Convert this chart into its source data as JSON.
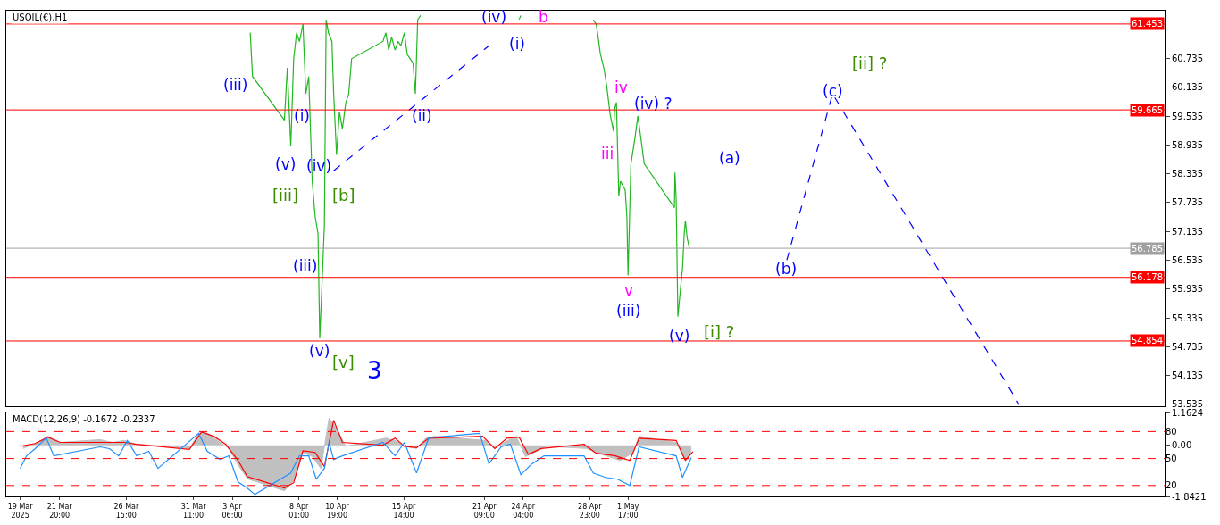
{
  "chart_data": [
    {
      "type": "line",
      "title": "USOIL(€),H1",
      "tick_labels": "y",
      "xlim": [
        "2025-03-18T00:00",
        "2025-06-09T07:00"
      ],
      "ylim": [
        53.49,
        61.73
      ],
      "yticks": [
        {
          "value": 53.535,
          "label": "53.535"
        },
        {
          "value": 54.135,
          "label": "54.135"
        },
        {
          "value": 54.735,
          "label": "54.735"
        },
        {
          "value": 55.335,
          "label": "55.335"
        },
        {
          "value": 55.935,
          "label": "55.935"
        },
        {
          "value": 56.535,
          "label": "56.535"
        },
        {
          "value": 57.135,
          "label": "57.135"
        },
        {
          "value": 57.735,
          "label": "57.735"
        },
        {
          "value": 58.335,
          "label": "58.335"
        },
        {
          "value": 58.935,
          "label": "58.935"
        },
        {
          "value": 59.535,
          "label": "59.535"
        },
        {
          "value": 60.135,
          "label": "60.135"
        },
        {
          "value": 60.735,
          "label": "60.735"
        }
      ],
      "series": [
        {
          "color": "#22b822",
          "line_style": "solid",
          "x": [
            "2025-04-04T13:00",
            "2025-04-04T17:00",
            "2025-04-07T00:00",
            "2025-04-07T05:00",
            "2025-04-07T11:00",
            "2025-04-07T16:00",
            "2025-04-07T21:00",
            "2025-04-08T02:00",
            "2025-04-08T08:00",
            "2025-04-08T13:00",
            "2025-04-08T18:00",
            "2025-04-09T00:00",
            "2025-04-09T05:00",
            "2025-04-09T10:00",
            "2025-04-09T13:00",
            "2025-04-09T18:00",
            "2025-04-09T21:00",
            "2025-04-10T00:00",
            "2025-04-10T04:00",
            "2025-04-10T10:00",
            "2025-04-10T13:00",
            "2025-04-10T18:00",
            "2025-04-10T23:00",
            "2025-04-11T04:00",
            "2025-04-11T10:00",
            "2025-04-11T15:00",
            "2025-04-11T20:00",
            "2025-04-14T02:00",
            "2025-04-14T07:00",
            "2025-04-14T12:00",
            "2025-04-14T17:00",
            "2025-04-14T23:00",
            "2025-04-15T04:00",
            "2025-04-15T09:00",
            "2025-04-15T15:00",
            "2025-04-15T20:00",
            "2025-04-16T01:00",
            "2025-04-16T06:00",
            "2025-04-16T10:00",
            "2025-04-16T14:00",
            "2025-04-16T19:00",
            "2025-04-17T19:00",
            "2025-04-23T21:00",
            "2025-04-24T00:00",
            "2025-04-25T16:00",
            "2025-04-29T05:00",
            "2025-04-29T10:00",
            "2025-04-29T13:00",
            "2025-04-29T17:00",
            "2025-04-30T00:00",
            "2025-04-30T04:00",
            "2025-04-30T10:00",
            "2025-04-30T16:00",
            "2025-04-30T18:00",
            "2025-04-30T21:00",
            "2025-05-01T01:00",
            "2025-05-01T04:00",
            "2025-05-01T12:00",
            "2025-05-01T15:00",
            "2025-05-01T17:00",
            "2025-05-01T22:00",
            "2025-05-02T05:00",
            "2025-05-02T10:00",
            "2025-05-02T15:00",
            "2025-05-02T21:00",
            "2025-05-05T01:00",
            "2025-05-05T02:00",
            "2025-05-05T04:00",
            "2025-05-05T07:00",
            "2025-05-05T12:00",
            "2025-05-05T15:00",
            "2025-05-05T18:00",
            "2025-05-05T20:00",
            "2025-05-05T23:00",
            "2025-05-06T03:00"
          ],
          "values": [
            61.27,
            60.36,
            59.45,
            60.54,
            58.91,
            60.73,
            61.27,
            61.09,
            61.45,
            60.0,
            60.36,
            58.18,
            57.45,
            57.09,
            54.91,
            56.36,
            57.27,
            61.54,
            61.27,
            61.09,
            60.0,
            58.73,
            59.63,
            59.27,
            59.82,
            60.0,
            60.73,
            61.09,
            61.27,
            60.91,
            61.18,
            60.91,
            61.09,
            61.0,
            61.27,
            60.82,
            60.73,
            60.64,
            60.0,
            61.54,
            61.63,
            null,
            61.55,
            61.63,
            null,
            61.54,
            61.45,
            61.22,
            60.85,
            60.49,
            60.18,
            59.58,
            59.22,
            59.69,
            59.82,
            57.87,
            58.18,
            58.0,
            57.45,
            56.22,
            58.54,
            59.09,
            59.54,
            59.09,
            58.54,
            57.63,
            58.36,
            57.82,
            55.36,
            56.0,
            56.36,
            57.09,
            57.36,
            57.0,
            56.78
          ]
        },
        {
          "color": "#0000ff",
          "line_style": "dashed",
          "x": [
            "2025-04-10T13:00",
            "2025-04-21T17:00"
          ],
          "values": [
            58.4,
            61.0
          ]
        },
        {
          "color": "#0000ff",
          "line_style": "dashed",
          "x": [
            "2025-05-13T03:00",
            "2025-05-16T10:00",
            "2025-05-29T20:00"
          ],
          "values": [
            56.54,
            60.0,
            53.53
          ]
        }
      ],
      "ref_lines": [
        {
          "axis": "y",
          "value": 61.453,
          "label": "61.453",
          "color": "#ff0000"
        },
        {
          "axis": "y",
          "value": 59.665,
          "label": "59.665",
          "color": "#ff0000"
        },
        {
          "axis": "y",
          "value": 56.785,
          "label": "56.785",
          "color": "#a0a0a0"
        },
        {
          "axis": "y",
          "value": 56.178,
          "label": "56.178",
          "color": "#ff0000"
        },
        {
          "axis": "y",
          "value": 54.854,
          "label": "54.854",
          "color": "#ff0000"
        }
      ],
      "annotations": [
        "(iii)",
        "(i)",
        "(v)",
        "(iv)",
        "[iii]",
        "[b]",
        "(iii)",
        "(v)",
        "[v]",
        "3",
        "(ii)",
        "(iv)",
        "(i)",
        "b",
        "iv",
        "iii",
        "(iv) ?",
        "(a)",
        "v",
        "(iii)",
        "(v)",
        "[i] ?",
        "[ii] ?",
        "(c)",
        "(b)"
      ]
    },
    {
      "type": "line",
      "title": "MACD(12,26,9) -0.1672 -0.2337",
      "xlim": [
        "2025-03-18T00:00",
        "2025-06-09T07:00"
      ],
      "xticks": [
        {
          "value": "2025-03-19",
          "label": "19 Mar 2025"
        },
        {
          "value": "2025-03-21T20:00",
          "label": "21 Mar 20:00"
        },
        {
          "value": "2025-03-26T15:00",
          "label": "26 Mar 15:00"
        },
        {
          "value": "2025-03-31T11:00",
          "label": "31 Mar 11:00"
        },
        {
          "value": "2025-04-03T06:00",
          "label": "3 Apr 06:00"
        },
        {
          "value": "2025-04-08T01:00",
          "label": "8 Apr 01:00"
        },
        {
          "value": "2025-04-10T19:00",
          "label": "10 Apr 19:00"
        },
        {
          "value": "2025-04-15T14:00",
          "label": "15 Apr 14:00"
        },
        {
          "value": "2025-04-21T09:00",
          "label": "21 Apr 09:00"
        },
        {
          "value": "2025-04-24T04:00",
          "label": "24 Apr 04:00"
        },
        {
          "value": "2025-04-28T23:00",
          "label": "28 Apr 23:00"
        },
        {
          "value": "2025-05-01T17:00",
          "label": "1 May 17:00"
        }
      ],
      "ylim": [
        -1.8421,
        1.1624
      ],
      "yticks": [
        -1.8421,
        {
          "value": 0,
          "label": "0.00"
        },
        1.1624
      ],
      "y2lim": [
        7.9,
        100.8
      ],
      "y2ticks": [
        20,
        50,
        80
      ],
      "series": [
        {
          "type": "area",
          "color": "#c0c0c0",
          "x": [
            "2025-03-19T05:00",
            "2025-03-20T02:00",
            "2025-03-21T00:00",
            "2025-03-21T21:00",
            "2025-03-24T18:00",
            "2025-03-25T15:00",
            "2025-03-26T12:00",
            "2025-03-27T09:00",
            "2025-03-28T06:00",
            "2025-03-31T04:00",
            "2025-03-31T20:00",
            "2025-04-01T11:00",
            "2025-04-02T09:00",
            "2025-04-03T00:00",
            "2025-04-03T16:00",
            "2025-04-04T08:00",
            "2025-04-07T00:00",
            "2025-04-07T16:00",
            "2025-04-08T08:00",
            "2025-04-09T00:00",
            "2025-04-09T15:00",
            "2025-04-10T05:00",
            "2025-04-10T18:00",
            "2025-04-11T10:00",
            "2025-04-14T07:00",
            "2025-04-14T23:00",
            "2025-04-15T15:00",
            "2025-04-16T12:00",
            "2025-04-17T04:00",
            "2025-04-17T19:00",
            "2025-04-21T11:00",
            "2025-04-22T03:00",
            "2025-04-22T19:00",
            "2025-04-23T16:00",
            "2025-04-24T08:00",
            "2025-04-25T00:00",
            "2025-04-25T21:00",
            "2025-04-28T18:00",
            "2025-04-29T10:00",
            "2025-04-30T07:00",
            "2025-05-01T04:00",
            "2025-05-02T02:00",
            "2025-05-02T12:00",
            "2025-05-05T04:00",
            "2025-05-05T20:00",
            "2025-05-06T06:00"
          ],
          "values": [
            -0.12,
            0.06,
            0.32,
            0.1,
            0.2,
            0.1,
            0.17,
            0.03,
            0,
            -0.12,
            0.44,
            0.44,
            0.1,
            -0.12,
            -0.7,
            -1.21,
            -1.64,
            -1.28,
            -0.26,
            -0.41,
            -0.84,
            0.97,
            0.61,
            -0.04,
            0.25,
            0.17,
            -0.04,
            -0.12,
            0.25,
            0.32,
            0.17,
            -0.12,
            0.1,
            0.32,
            -0.41,
            -0.26,
            -0.04,
            -0.12,
            -0.26,
            -0.41,
            -0.55,
            -0.26,
            0.32,
            0.1,
            -0.55,
            -0.26
          ]
        },
        {
          "color": "#ff0000",
          "line_style": "solid",
          "x": [
            "2025-03-19T00:00",
            "2025-03-20T02:00",
            "2025-03-21T00:00",
            "2025-03-21T21:00",
            "2025-03-25T04:00",
            "2025-03-26T12:00",
            "2025-03-27T09:00",
            "2025-03-31T04:00",
            "2025-04-01T01:00",
            "2025-04-01T22:00",
            "2025-04-02T19:00",
            "2025-04-03T16:00",
            "2025-04-04T08:00",
            "2025-04-07T00:00",
            "2025-04-07T16:00",
            "2025-04-08T08:00",
            "2025-04-09T05:00",
            "2025-04-09T21:00",
            "2025-04-10T13:00",
            "2025-04-11T04:00",
            "2025-04-14T02:00",
            "2025-04-14T23:00",
            "2025-04-15T15:00",
            "2025-04-16T12:00",
            "2025-04-17T09:00",
            "2025-04-21T06:00",
            "2025-04-22T03:00",
            "2025-04-23T00:00",
            "2025-04-23T21:00",
            "2025-04-24T13:00",
            "2025-04-25T11:00",
            "2025-04-28T13:00",
            "2025-04-29T10:00",
            "2025-04-30T18:00",
            "2025-05-01T20:00",
            "2025-05-02T12:00",
            "2025-05-05T04:00",
            "2025-05-05T20:00",
            "2025-05-06T09:00"
          ],
          "values": [
            -0.04,
            0.06,
            0.29,
            0.1,
            0.1,
            0.1,
            0.03,
            -0.15,
            0.47,
            0.32,
            0.03,
            -0.55,
            -1.13,
            -1.54,
            -1.35,
            -0.2,
            -0.26,
            -0.77,
            0.9,
            0.1,
            0,
            0.25,
            -0.04,
            -0.09,
            0.25,
            0.32,
            -0.12,
            0.25,
            0.29,
            -0.33,
            -0.12,
            0.03,
            -0.29,
            -0.38,
            -0.55,
            0.25,
            0.17,
            -0.55,
            -0.23
          ]
        },
        {
          "axis": "y2",
          "color": "#1e90ff",
          "line_style": "solid",
          "x": [
            "2025-03-19T00:00",
            "2025-03-19T11:00",
            "2025-03-20T02:00",
            "2025-03-20T21:00",
            "2025-03-21T10:00",
            "2025-03-24T02:00",
            "2025-03-24T18:00",
            "2025-03-25T10:00",
            "2025-03-26T02:00",
            "2025-03-26T17:00",
            "2025-03-27T09:00",
            "2025-03-28T06:00",
            "2025-03-28T22:00",
            "2025-03-31T20:00",
            "2025-04-01T11:00",
            "2025-04-02T09:00",
            "2025-04-03T00:00",
            "2025-04-03T16:00",
            "2025-04-04T08:00",
            "2025-04-04T21:00",
            "2025-04-07T11:00",
            "2025-04-08T02:00",
            "2025-04-08T18:00",
            "2025-04-09T07:00",
            "2025-04-09T21:00",
            "2025-04-10T05:00",
            "2025-04-10T13:00",
            "2025-04-11T04:00",
            "2025-04-14T02:00",
            "2025-04-14T23:00",
            "2025-04-15T15:00",
            "2025-04-16T12:00",
            "2025-04-17T09:00",
            "2025-04-21T01:00",
            "2025-04-21T17:00",
            "2025-04-22T14:00",
            "2025-04-23T06:00",
            "2025-04-24T00:00",
            "2025-04-24T19:00",
            "2025-04-25T16:00",
            "2025-04-28T13:00",
            "2025-04-29T05:00",
            "2025-04-30T02:00",
            "2025-04-30T23:00",
            "2025-05-01T20:00",
            "2025-05-02T12:00",
            "2025-05-05T04:00",
            "2025-05-05T15:00",
            "2025-05-06T06:00"
          ],
          "values": [
            39,
            53,
            61,
            73,
            53,
            61,
            63,
            61,
            53,
            70,
            53,
            58,
            39,
            78,
            58,
            49,
            53,
            24,
            17,
            10,
            34,
            53,
            53,
            27,
            39,
            68,
            49,
            53,
            68,
            53,
            68,
            34,
            73,
            78,
            44,
            63,
            66,
            32,
            44,
            53,
            53,
            34,
            29,
            27,
            20,
            63,
            53,
            29,
            51
          ]
        }
      ],
      "ref_lines": [
        {
          "axis": "y2",
          "value": 80,
          "color": "#ff0000",
          "line_style": "dashed"
        },
        {
          "axis": "y2",
          "value": 50,
          "color": "#ff0000",
          "line_style": "dashed"
        },
        {
          "axis": "y2",
          "value": 20,
          "color": "#ff0000",
          "line_style": "dashed"
        }
      ]
    }
  ]
}
